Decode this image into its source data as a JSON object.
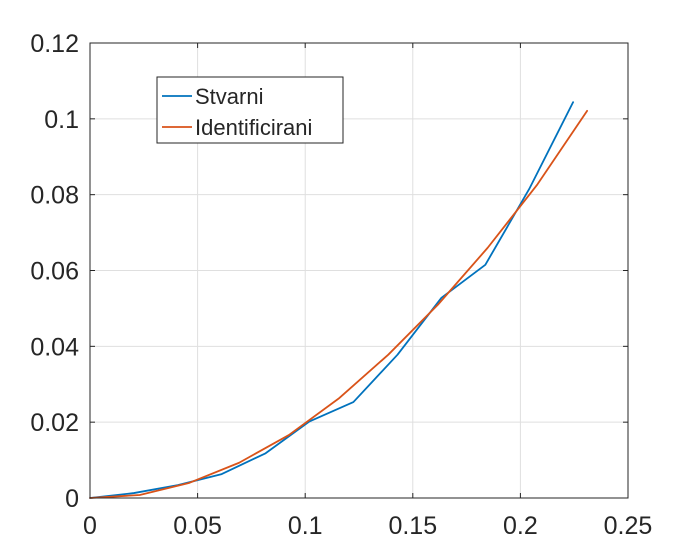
{
  "chart_data": {
    "type": "line",
    "title": "",
    "xlabel": "",
    "ylabel": "",
    "xlim": [
      0,
      0.25
    ],
    "ylim": [
      0,
      0.12
    ],
    "xticks": [
      0,
      0.05,
      0.1,
      0.15,
      0.2,
      0.25
    ],
    "yticks": [
      0,
      0.02,
      0.04,
      0.06,
      0.08,
      0.1,
      0.12
    ],
    "xtick_labels": [
      "0",
      "0.05",
      "0.1",
      "0.15",
      "0.2",
      "0.25"
    ],
    "ytick_labels": [
      "0",
      "0.02",
      "0.04",
      "0.06",
      "0.08",
      "0.1",
      "0.12"
    ],
    "grid": true,
    "legend_position": "top-left",
    "series": [
      {
        "name": "Stvarni",
        "color": "#0072BD",
        "x": [
          0,
          0.0204,
          0.0408,
          0.0612,
          0.0816,
          0.102,
          0.1224,
          0.1429,
          0.1633,
          0.1837,
          0.2041,
          0.2245
        ],
        "y": [
          0,
          0.0013,
          0.0034,
          0.0063,
          0.0118,
          0.0202,
          0.0253,
          0.0378,
          0.0528,
          0.0615,
          0.0815,
          0.1044
        ]
      },
      {
        "name": "Identificirani",
        "color": "#D95319",
        "x": [
          0,
          0.0231,
          0.0462,
          0.0693,
          0.0924,
          0.1155,
          0.1386,
          0.1617,
          0.1848,
          0.2079,
          0.231
        ],
        "y": [
          0,
          0.0008,
          0.004,
          0.0093,
          0.0166,
          0.0262,
          0.0378,
          0.051,
          0.066,
          0.0827,
          0.1021
        ]
      }
    ]
  }
}
